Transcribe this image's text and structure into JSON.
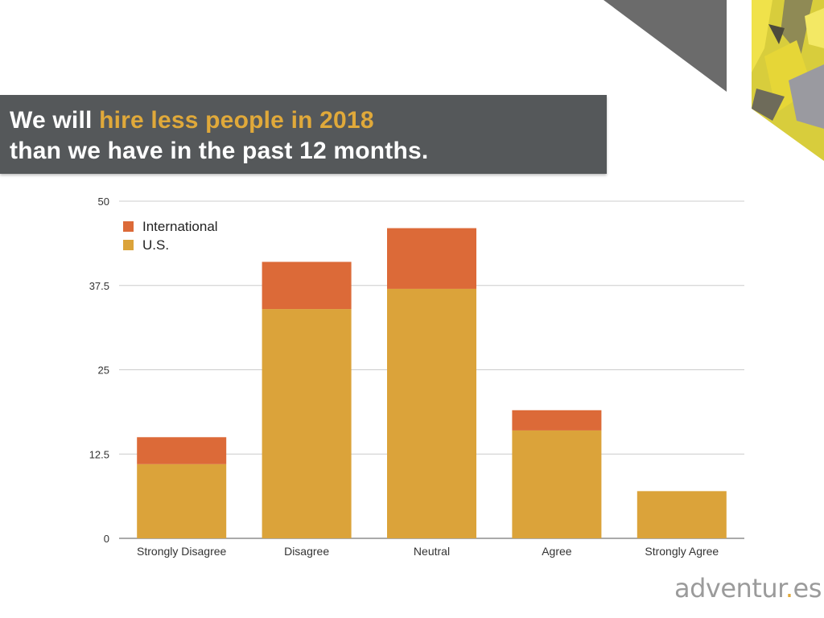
{
  "title": {
    "prefix": "We will ",
    "highlight": "hire less people in 2018",
    "line2": "than we have in the past 12 months."
  },
  "chart_data": {
    "type": "bar",
    "stacked": true,
    "categories": [
      "Strongly Disagree",
      "Disagree",
      "Neutral",
      "Agree",
      "Strongly Agree"
    ],
    "series": [
      {
        "name": "U.S.",
        "color": "#dba33a",
        "values": [
          11,
          34,
          37,
          16,
          7
        ]
      },
      {
        "name": "International",
        "color": "#dc6a38",
        "values": [
          4,
          7,
          9,
          3,
          0
        ]
      }
    ],
    "legend_order": [
      "International",
      "U.S."
    ],
    "yticks": [
      0,
      12.5,
      25,
      37.5,
      50
    ],
    "ylim": [
      0,
      50
    ],
    "xlabel": "",
    "ylabel": "",
    "grid": true,
    "legend_position": "top-left"
  },
  "brand": {
    "name": "adventur",
    "dot": ".",
    "suffix": "es"
  }
}
